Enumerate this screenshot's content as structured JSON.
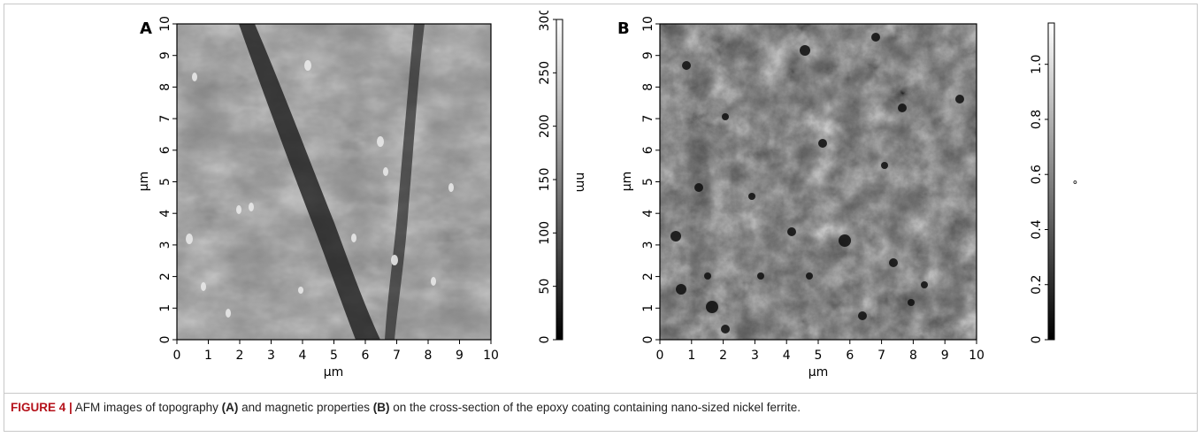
{
  "panels": [
    {
      "letter": "A",
      "x_label": "μm",
      "y_label": "μm",
      "x_ticks": [
        "0",
        "1",
        "2",
        "3",
        "4",
        "5",
        "6",
        "7",
        "8",
        "9",
        "10"
      ],
      "y_ticks": [
        "0",
        "1",
        "2",
        "3",
        "4",
        "5",
        "6",
        "7",
        "8",
        "9",
        "10"
      ],
      "image_desc": "topography",
      "colorbar": {
        "unit": "nm",
        "ticks": [
          "0",
          "50",
          "100",
          "150",
          "200",
          "250",
          "300"
        ],
        "range": [
          0,
          300
        ],
        "gradient": [
          "#000000",
          "#ffffff"
        ]
      }
    },
    {
      "letter": "B",
      "x_label": "μm",
      "y_label": "μm",
      "x_ticks": [
        "0",
        "1",
        "2",
        "3",
        "4",
        "5",
        "6",
        "7",
        "8",
        "9",
        "10"
      ],
      "y_ticks": [
        "0",
        "1",
        "2",
        "3",
        "4",
        "5",
        "6",
        "7",
        "8",
        "9",
        "10"
      ],
      "image_desc": "magnetic",
      "colorbar": {
        "unit": "°",
        "ticks": [
          "0",
          "0.2",
          "0.4",
          "0.6",
          "0.8",
          "1.0"
        ],
        "range": [
          0,
          1.15
        ],
        "gradient": [
          "#000000",
          "#ffffff"
        ]
      }
    }
  ],
  "caption": {
    "label": "FIGURE 4 |",
    "text_1": " AFM images of topography ",
    "ref_a": "(A)",
    "text_2": " and magnetic properties ",
    "ref_b": "(B)",
    "text_3": " on the cross-section of the epoxy coating containing nano-sized nickel ferrite."
  }
}
